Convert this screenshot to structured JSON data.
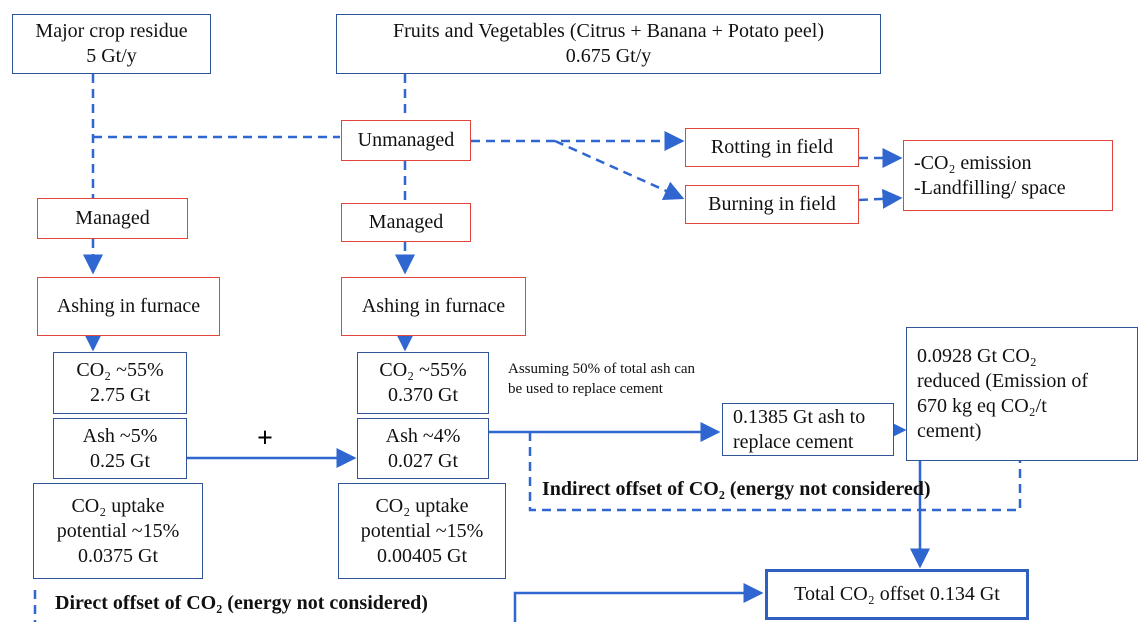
{
  "nodes": [
    {
      "lines": [
        "Major crop residue",
        "5 Gt/y"
      ]
    },
    {
      "lines": [
        "Fruits and Vegetables (Citrus + Banana + Potato peel)",
        "0.675 Gt/y"
      ]
    },
    {
      "lines": [
        "Unmanaged"
      ]
    },
    {
      "lines": [
        "Rotting in field"
      ]
    },
    {
      "lines": [
        "Burning in field"
      ]
    },
    {
      "lines": [
        "-CO₂ emission",
        "-Landfilling/ space"
      ]
    },
    {
      "lines": [
        "Managed"
      ]
    },
    {
      "lines": [
        "Managed"
      ]
    },
    {
      "lines": [
        "Ashing in furnace"
      ]
    },
    {
      "lines": [
        "Ashing in furnace"
      ]
    },
    {
      "lines": [
        "CO₂ ~55%",
        "2.75 Gt"
      ]
    },
    {
      "lines": [
        "Ash ~5%",
        "0.25 Gt"
      ]
    },
    {
      "lines": [
        "CO₂ uptake",
        "potential ~15%",
        "0.0375 Gt"
      ]
    },
    {
      "lines": [
        "CO₂ ~55%",
        "0.370 Gt"
      ]
    },
    {
      "lines": [
        "Ash ~4%",
        "0.027 Gt"
      ]
    },
    {
      "lines": [
        "CO₂ uptake",
        "potential ~15%",
        "0.00405 Gt"
      ]
    },
    {
      "lines": [
        "0.1385 Gt ash to",
        "replace cement"
      ]
    },
    {
      "lines": [
        "0.0928 Gt CO₂",
        "reduced (Emission of",
        "670 kg eq CO₂/t",
        "cement)"
      ]
    },
    {
      "lines": [
        "Total CO₂ offset 0.134 Gt"
      ]
    }
  ],
  "notes": {
    "assumption": "Assuming 50% of total ash can be used to replace cement",
    "indirect_offset": "Indirect offset of CO₂ (energy not considered)",
    "direct_offset": "Direct offset of CO₂ (energy not considered)"
  }
}
